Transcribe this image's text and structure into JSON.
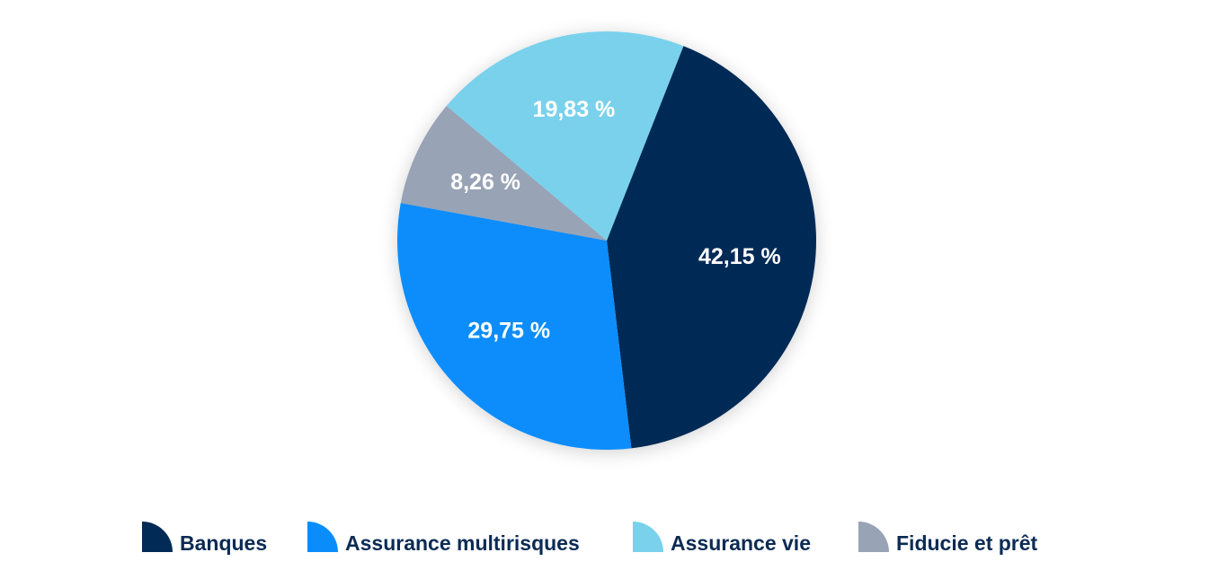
{
  "chart_data": {
    "type": "pie",
    "title": "",
    "slices": [
      {
        "name": "Banques",
        "value": 42.15,
        "label": "42,15 %",
        "color": "#022a56"
      },
      {
        "name": "Assurance multirisques",
        "value": 29.75,
        "label": "29,75 %",
        "color": "#0a8dfb"
      },
      {
        "name": "Fiducie et prêt",
        "value": 8.26,
        "label": "8,26 %",
        "color": "#98a3b6"
      },
      {
        "name": "Assurance vie",
        "value": 19.83,
        "label": "19,83 %",
        "color": "#7ad1ec"
      }
    ],
    "legend": {
      "position": "bottom",
      "entries": [
        "Banques",
        "Assurance multirisques",
        "Assurance vie",
        "Fiducie et prêt"
      ]
    }
  }
}
